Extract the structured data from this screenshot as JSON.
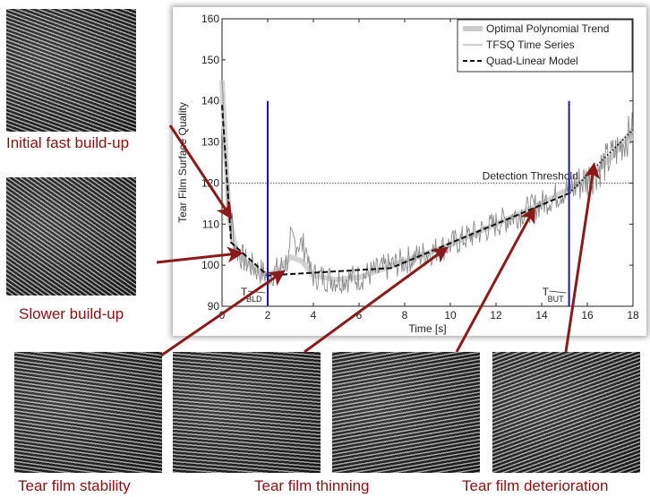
{
  "images": [
    {
      "label": "Initial fast build-up"
    },
    {
      "label": "Slower build-up"
    },
    {
      "label": "Tear film stability"
    },
    {
      "label": "Tear film thinning"
    },
    {
      "label": "Tear film deterioration"
    }
  ],
  "colors": {
    "arrow": "#8b1a1a",
    "marker": "#1a1aa8",
    "label": "#8b1010"
  },
  "chart_data": {
    "type": "line",
    "xlabel": "Time [s]",
    "ylabel": "Tear Film Surface Quality",
    "xlim": [
      0,
      18
    ],
    "ylim": [
      90,
      160
    ],
    "xticks": [
      "0",
      "2",
      "4",
      "6",
      "8",
      "10",
      "12",
      "14",
      "16",
      "18"
    ],
    "yticks": [
      "90",
      "100",
      "110",
      "120",
      "130",
      "140",
      "150",
      "160"
    ],
    "legend": {
      "placement": "top-right",
      "entries": [
        "Optimal Polynomial Trend",
        "TFSQ Time Series",
        "Quad-Linear Model"
      ]
    },
    "threshold": {
      "label": "Detection Threshold",
      "y": 120
    },
    "markers": [
      {
        "label": "T",
        "sub": "BLD",
        "x": 2,
        "ymax": 140
      },
      {
        "label": "T",
        "sub": "BUT",
        "x": 15.2,
        "ymax": 140
      }
    ],
    "series": [
      {
        "name": "Optimal Polynomial Trend",
        "x": [
          0,
          0.3,
          0.6,
          1,
          1.5,
          2,
          2.5,
          3,
          3.5,
          4,
          5,
          6,
          7,
          8,
          9,
          10,
          11,
          12,
          13,
          14,
          15,
          16,
          17,
          18
        ],
        "y": [
          145,
          112,
          104,
          101,
          99,
          97.5,
          99,
          102,
          101,
          97.5,
          96.5,
          97,
          99,
          101,
          103,
          105,
          107.5,
          110,
          112.5,
          115,
          118,
          121,
          126,
          133
        ]
      },
      {
        "name": "TFSQ Time Series",
        "note": "noisy",
        "base": "Optimal Polynomial Trend"
      },
      {
        "name": "Quad-Linear Model",
        "x": [
          0,
          0.4,
          2,
          7.4,
          15.2
        ],
        "y": [
          139,
          105.5,
          97.5,
          99.3,
          117.5
        ],
        "extrapolated": {
          "x": [
            15.2,
            18
          ],
          "y": [
            117.5,
            133
          ]
        }
      }
    ]
  }
}
